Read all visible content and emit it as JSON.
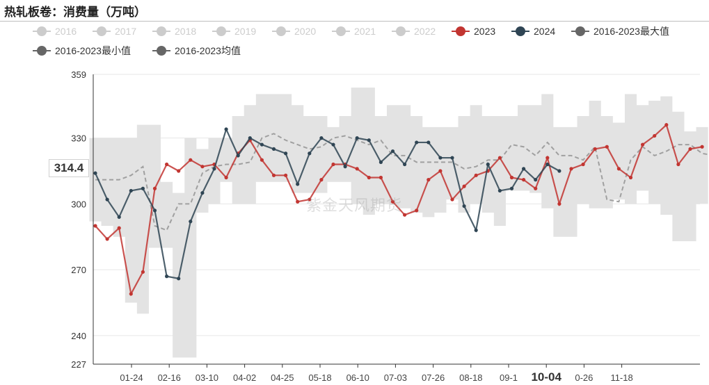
{
  "title": "热轧板卷：消费量（万吨）",
  "watermark": "紫金天风期货",
  "current_value_label": "314.4",
  "highlight_tick": "10-04",
  "chart_data": {
    "type": "line",
    "ylim": [
      227,
      359
    ],
    "yticks": [
      227,
      240,
      270,
      300,
      330,
      359
    ],
    "x_tick_labels": [
      "01-24",
      "02-16",
      "03-10",
      "04-02",
      "04-25",
      "05-18",
      "06-10",
      "07-03",
      "07-26",
      "08-18",
      "09-1",
      "10-04",
      "0-26",
      "11-18"
    ],
    "legend": [
      {
        "name": "2016",
        "color": "#cccccc",
        "inactive": true
      },
      {
        "name": "2017",
        "color": "#cccccc",
        "inactive": true
      },
      {
        "name": "2018",
        "color": "#cccccc",
        "inactive": true
      },
      {
        "name": "2019",
        "color": "#cccccc",
        "inactive": true
      },
      {
        "name": "2020",
        "color": "#cccccc",
        "inactive": true
      },
      {
        "name": "2021",
        "color": "#cccccc",
        "inactive": true
      },
      {
        "name": "2022",
        "color": "#cccccc",
        "inactive": true
      },
      {
        "name": "2023",
        "color": "#c23531",
        "inactive": false
      },
      {
        "name": "2024",
        "color": "#2f4554",
        "inactive": false
      },
      {
        "name": "2016-2023最大值",
        "color": "#666666",
        "inactive": false
      },
      {
        "name": "2016-2023最小值",
        "color": "#666666",
        "inactive": false
      },
      {
        "name": "2016-2023均值",
        "color": "#666666",
        "inactive": false
      }
    ],
    "series": [
      {
        "name": "2023",
        "color": "#c23531",
        "values": [
          290,
          284,
          289,
          259,
          269,
          307,
          318,
          315,
          320,
          317,
          318,
          312,
          323,
          329,
          320,
          313,
          313,
          301,
          302,
          311,
          318,
          318,
          316,
          312,
          312,
          301,
          295,
          297,
          311,
          315,
          302,
          308,
          313,
          315,
          321,
          312,
          311,
          307,
          321,
          300,
          316,
          318,
          325,
          326,
          316,
          312,
          327,
          331,
          336,
          318,
          325,
          326
        ]
      },
      {
        "name": "2024",
        "color": "#2f4554",
        "values": [
          314,
          302,
          294,
          306,
          307,
          297,
          267,
          266,
          292,
          305,
          316,
          334,
          322,
          330,
          327,
          325,
          323,
          309,
          323,
          330,
          327,
          317,
          330,
          329,
          319,
          324,
          318,
          328,
          328,
          321,
          321,
          299,
          288,
          318,
          306,
          307,
          316,
          311,
          318,
          315
        ]
      },
      {
        "name": "2016-2023均值",
        "color": "#a0a0a0",
        "dashed": true,
        "values": [
          311,
          311,
          311,
          313,
          317,
          290,
          288,
          300,
          300,
          314,
          317,
          318,
          318,
          319,
          330,
          332,
          329,
          327,
          325,
          326,
          330,
          331,
          329,
          327,
          329,
          322,
          322,
          319,
          319,
          319,
          319,
          316,
          317,
          320,
          320,
          327,
          326,
          322,
          328,
          322,
          322,
          320,
          326,
          302,
          301,
          320,
          326,
          322,
          324,
          327,
          327,
          323,
          322,
          325,
          318,
          319,
          316,
          318
        ]
      },
      {
        "name": "2016-2023最大值",
        "values": [
          330,
          330,
          330,
          330,
          336,
          336,
          310,
          305,
          330,
          325,
          330,
          330,
          340,
          345,
          350,
          350,
          350,
          345,
          340,
          340,
          335,
          340,
          353,
          353,
          340,
          345,
          345,
          340,
          335,
          335,
          335,
          340,
          345,
          340,
          340,
          340,
          345,
          345,
          350,
          335,
          335,
          340,
          347,
          340,
          337,
          350,
          345,
          347,
          349,
          342,
          333,
          335
        ]
      },
      {
        "name": "2016-2023最小值",
        "values": [
          292,
          290,
          285,
          255,
          250,
          280,
          280,
          230,
          230,
          296,
          300,
          310,
          300,
          300,
          310,
          310,
          310,
          305,
          305,
          305,
          310,
          310,
          300,
          295,
          300,
          300,
          298,
          296,
          294,
          296,
          302,
          296,
          300,
          296,
          290,
          306,
          306,
          305,
          298,
          285,
          285,
          300,
          298,
          298,
          302,
          300,
          306,
          300,
          295,
          283,
          283,
          300
        ]
      }
    ]
  }
}
